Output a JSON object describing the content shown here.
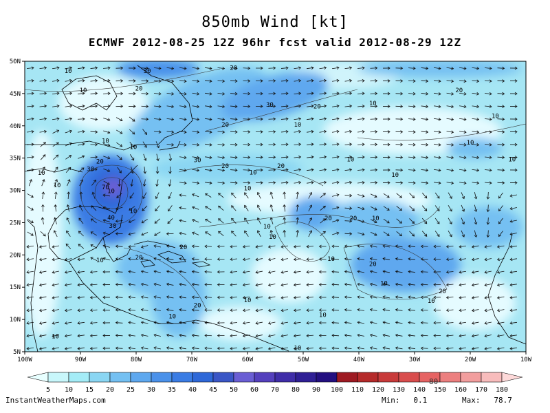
{
  "title": "850mb Wind [kt]",
  "subtitle": "ECMWF 2012-08-25 12Z 96hr fcst valid 2012-08-29 12Z",
  "map": {
    "lon_ticks": [
      "100W",
      "90W",
      "80W",
      "70W",
      "60W",
      "50W",
      "40W",
      "30W",
      "20W",
      "10W"
    ],
    "lat_ticks": [
      "50N",
      "45N",
      "40N",
      "35N",
      "30N",
      "25N",
      "20N",
      "15N",
      "10N",
      "5N"
    ],
    "extent": {
      "lon": [
        -100,
        -10
      ],
      "lat": [
        5,
        50
      ]
    },
    "contour_labels": [
      {
        "text": "10",
        "lon": -92.2,
        "lat": 48.5
      },
      {
        "text": "30",
        "lon": -78,
        "lat": 48.5
      },
      {
        "text": "20",
        "lon": -62.5,
        "lat": 49
      },
      {
        "text": "10",
        "lon": -89.5,
        "lat": 45.5
      },
      {
        "text": "20",
        "lon": -79.5,
        "lat": 45.8
      },
      {
        "text": "30",
        "lon": -56,
        "lat": 43.3
      },
      {
        "text": "20",
        "lon": -47.5,
        "lat": 43
      },
      {
        "text": "10",
        "lon": -37.5,
        "lat": 43.5
      },
      {
        "text": "20",
        "lon": -22,
        "lat": 45.5
      },
      {
        "text": "10",
        "lon": -15.5,
        "lat": 41.5
      },
      {
        "text": "20",
        "lon": -64,
        "lat": 40.2
      },
      {
        "text": "10",
        "lon": -51,
        "lat": 40.2
      },
      {
        "text": "10",
        "lon": -85.5,
        "lat": 37.7
      },
      {
        "text": "10",
        "lon": -80.5,
        "lat": 36.7
      },
      {
        "text": "30",
        "lon": -69,
        "lat": 34.7
      },
      {
        "text": "20",
        "lon": -64,
        "lat": 33.8
      },
      {
        "text": "10",
        "lon": -59,
        "lat": 32.8
      },
      {
        "text": "20",
        "lon": -54,
        "lat": 33.8
      },
      {
        "text": "10",
        "lon": -41.5,
        "lat": 34.8
      },
      {
        "text": "10",
        "lon": -33.5,
        "lat": 32.4
      },
      {
        "text": "10",
        "lon": -20,
        "lat": 37.4
      },
      {
        "text": "10",
        "lon": -12.5,
        "lat": 34.8
      },
      {
        "text": "10",
        "lon": -97,
        "lat": 32.7
      },
      {
        "text": "20",
        "lon": -86.5,
        "lat": 34.5
      },
      {
        "text": "30",
        "lon": -88.2,
        "lat": 33.3
      },
      {
        "text": "10",
        "lon": -94.2,
        "lat": 30.8
      },
      {
        "text": "10",
        "lon": -60,
        "lat": 30.3
      },
      {
        "text": "40",
        "lon": -84.5,
        "lat": 25.8
      },
      {
        "text": "30",
        "lon": -84.2,
        "lat": 24.5
      },
      {
        "text": "10",
        "lon": -80.5,
        "lat": 26.8
      },
      {
        "text": "10",
        "lon": -56.5,
        "lat": 24.4
      },
      {
        "text": "10",
        "lon": -55.5,
        "lat": 22.8
      },
      {
        "text": "20",
        "lon": -45.5,
        "lat": 25.7
      },
      {
        "text": "20",
        "lon": -41,
        "lat": 25.7
      },
      {
        "text": "10",
        "lon": -37,
        "lat": 25.7
      },
      {
        "text": "20",
        "lon": -71.5,
        "lat": 21.2
      },
      {
        "text": "20",
        "lon": -79.5,
        "lat": 19.6
      },
      {
        "text": "10",
        "lon": -86.5,
        "lat": 19.2
      },
      {
        "text": "10",
        "lon": -45,
        "lat": 19.4
      },
      {
        "text": "20",
        "lon": -37.5,
        "lat": 18.6
      },
      {
        "text": "10",
        "lon": -35.5,
        "lat": 15.6
      },
      {
        "text": "20",
        "lon": -25,
        "lat": 14.4
      },
      {
        "text": "10",
        "lon": -27,
        "lat": 12.9
      },
      {
        "text": "10",
        "lon": -60,
        "lat": 13
      },
      {
        "text": "20",
        "lon": -69,
        "lat": 12.2
      },
      {
        "text": "10",
        "lon": -73.5,
        "lat": 10.5
      },
      {
        "text": "10",
        "lon": -46.5,
        "lat": 10.7
      },
      {
        "text": "10",
        "lon": -94.5,
        "lat": 7.4
      },
      {
        "text": "10",
        "lon": -51,
        "lat": 5.6
      },
      {
        "text": "10",
        "lon": -84.5,
        "lat": 29.9
      }
    ],
    "storm_center": {
      "lon": -85.5,
      "lat": 30.5,
      "max_label": "70"
    }
  },
  "colorbar": {
    "levels": [
      "5",
      "10",
      "15",
      "20",
      "25",
      "30",
      "35",
      "40",
      "45",
      "50",
      "60",
      "70",
      "80",
      "90",
      "100",
      "110",
      "120",
      "130",
      "140",
      "150",
      "160",
      "170",
      "180"
    ],
    "colors": [
      "#e8ffff",
      "#c8f7fb",
      "#a4ecf7",
      "#8ad6f3",
      "#74c0f2",
      "#5ea8ef",
      "#4a91ea",
      "#3a7ce4",
      "#2e68d8",
      "#3a56c6",
      "#6a5ed4",
      "#5440bd",
      "#3f2da8",
      "#2f1f95",
      "#230f80",
      "#9e1a22",
      "#b52a2a",
      "#c83a3a",
      "#d94d4d",
      "#e66363",
      "#ec7f7f",
      "#f29e9e",
      "#f8bcbc",
      "#fdd9d9"
    ],
    "stray_text": "80"
  },
  "footer": {
    "brand": "InstantWeatherMaps.com",
    "min_label": "Min:",
    "min_value": "0.1",
    "max_label": "Max:",
    "max_value": "78.7"
  }
}
